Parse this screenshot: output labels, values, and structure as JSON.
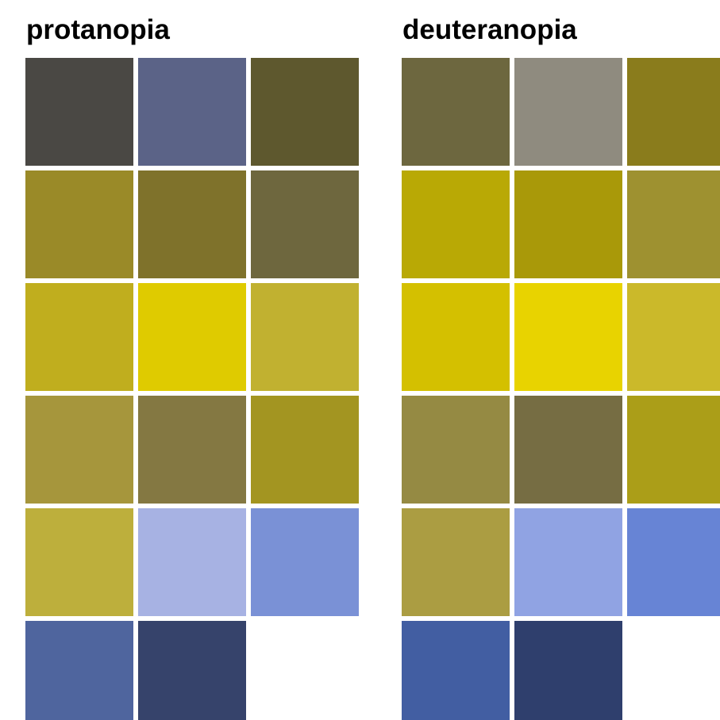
{
  "panels": [
    {
      "title": "protanopia",
      "swatches": [
        "#4a4844",
        "#5b6387",
        "#5e582e",
        "#9a8a28",
        "#7f722b",
        "#6e673e",
        "#c0ae1e",
        "#dfcb00",
        "#c1b130",
        "#a6963c",
        "#847842",
        "#a39521",
        "#bdaf3c",
        "#a7b2e3",
        "#7a91d6",
        "#4f659e",
        "#36436b"
      ]
    },
    {
      "title": "deuteranopia",
      "swatches": [
        "#6d673f",
        "#8f8b7f",
        "#8a7c1c",
        "#b9a905",
        "#a99909",
        "#9e9130",
        "#d4c000",
        "#e8d300",
        "#cbb92a",
        "#958a43",
        "#766d43",
        "#ab9e18",
        "#ab9d42",
        "#90a3e3",
        "#6784d5",
        "#425ea2",
        "#2f3f6d"
      ]
    }
  ]
}
